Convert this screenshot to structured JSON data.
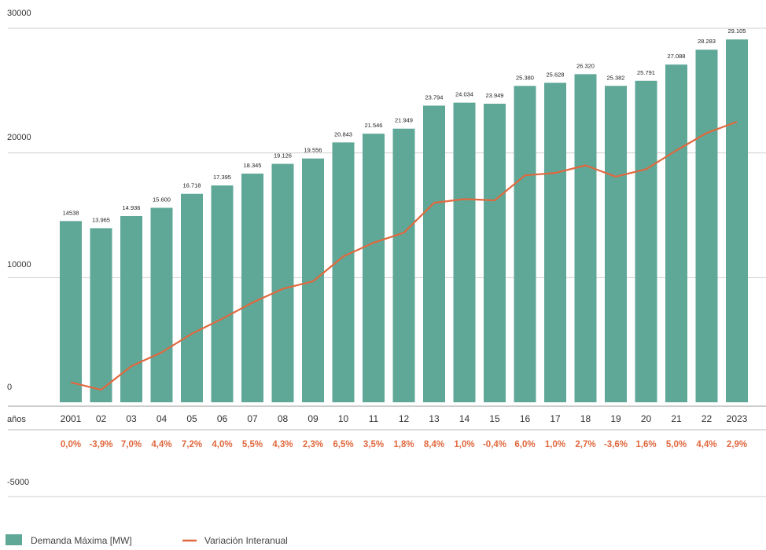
{
  "colors": {
    "bar": "#5fa898",
    "line": "#e0683e",
    "grid": "#cfcfcf",
    "axis_text": "#333333",
    "pct_text": "#e0683e"
  },
  "chart_data": {
    "type": "bar",
    "title": "",
    "xlabel": "",
    "ylabel": "",
    "ylim": [
      -5000,
      30000
    ],
    "y_ticks": [
      "30000",
      "20000",
      "10000",
      "0",
      "-5000"
    ],
    "grid": true,
    "x_axis_label": "años",
    "categories": [
      "2001",
      "02",
      "03",
      "04",
      "05",
      "06",
      "07",
      "08",
      "09",
      "10",
      "11",
      "12",
      "13",
      "14",
      "15",
      "16",
      "17",
      "18",
      "19",
      "20",
      "21",
      "22",
      "2023"
    ],
    "bar_labels": [
      "14538",
      "13.965",
      "14.936",
      "15.600",
      "16.718",
      "17.395",
      "18.345",
      "19.126",
      "19.556",
      "20.843",
      "21.546",
      "21.949",
      "23.794",
      "24.034",
      "23.949",
      "25.380",
      "25.628",
      "26.320",
      "25.382",
      "25.791",
      "27.088",
      "28.283",
      "29.105"
    ],
    "series": [
      {
        "name": "Demanda Máxima [MW]",
        "kind": "bar",
        "values": [
          14538,
          13965,
          14936,
          15600,
          16718,
          17395,
          18345,
          19126,
          19556,
          20843,
          21546,
          21949,
          23794,
          24034,
          23949,
          25380,
          25628,
          26320,
          25382,
          25791,
          27088,
          28283,
          29105
        ]
      },
      {
        "name": "Variación Interanual",
        "kind": "line",
        "values": [
          1600,
          1000,
          2900,
          4000,
          5500,
          6700,
          8000,
          9100,
          9700,
          11700,
          12800,
          13600,
          16000,
          16300,
          16200,
          18200,
          18400,
          19000,
          18100,
          18700,
          20200,
          21600,
          22500
        ]
      }
    ],
    "pct_labels": [
      "0,0%",
      "-3,9%",
      "7,0%",
      "4,4%",
      "7,2%",
      "4,0%",
      "5,5%",
      "4,3%",
      "2,3%",
      "6,5%",
      "3,5%",
      "1,8%",
      "8,4%",
      "1,0%",
      "-0,4%",
      "6,0%",
      "1,0%",
      "2,7%",
      "-3,6%",
      "1,6%",
      "5,0%",
      "4,4%",
      "2,9%"
    ],
    "legend_position": "bottom-left"
  }
}
